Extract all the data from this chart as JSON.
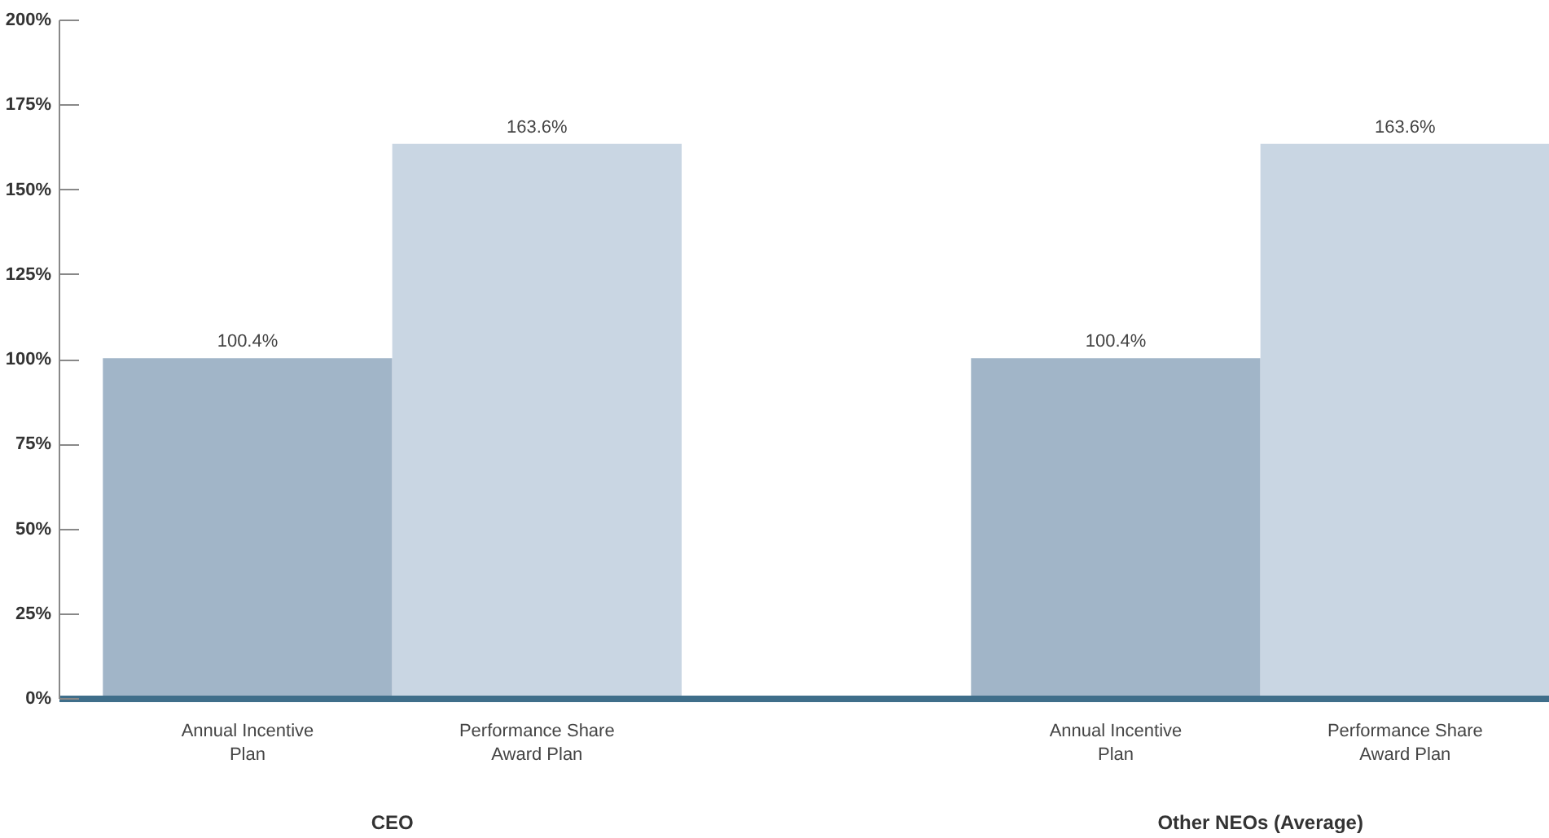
{
  "chart_data": {
    "type": "bar",
    "categories": [
      "Annual Incentive\nPlan",
      "Performance Share\nAward Plan",
      "Annual Incentive\nPlan",
      "Performance Share\nAward Plan"
    ],
    "values": [
      100.4,
      163.6,
      100.4,
      163.6
    ],
    "colors": [
      "#a1b5c8",
      "#c9d6e3",
      "#a1b5c8",
      "#c9d6e3"
    ],
    "data_labels": true,
    "value_labels": [
      "100.4%",
      "163.6%",
      "100.4%",
      "163.6%"
    ],
    "ylim": [
      0,
      200
    ],
    "yticks": [
      {
        "value": 0,
        "label": "0%"
      },
      {
        "value": 25,
        "label": "25%"
      },
      {
        "value": 50,
        "label": "50%"
      },
      {
        "value": 75,
        "label": "75%"
      },
      {
        "value": 100,
        "label": "100%"
      },
      {
        "value": 125,
        "label": "125%"
      },
      {
        "value": 150,
        "label": "150%"
      },
      {
        "value": 175,
        "label": "175%"
      },
      {
        "value": 200,
        "label": "200%"
      }
    ],
    "annotations": [
      "CEO",
      "Other NEOs (Average)"
    ],
    "grid": false
  }
}
